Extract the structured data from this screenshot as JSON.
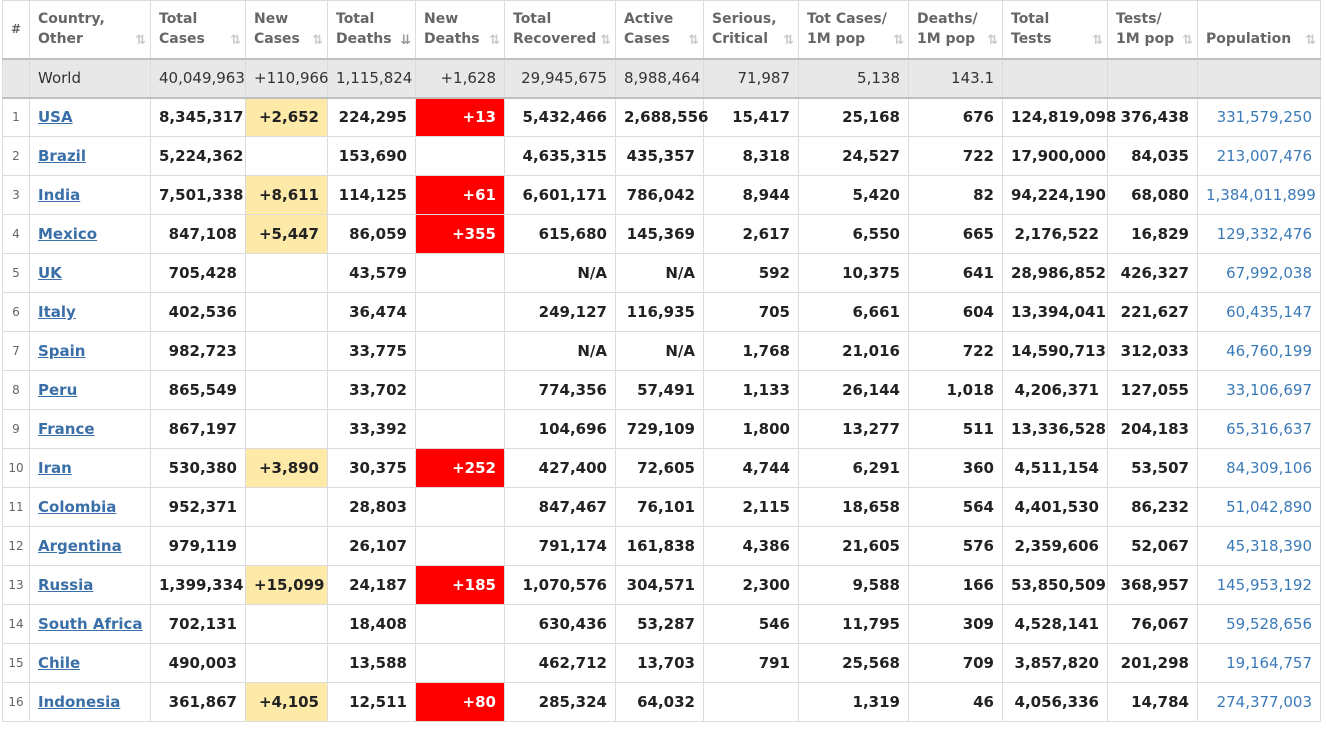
{
  "headers": [
    {
      "l1": "#",
      "l2": ""
    },
    {
      "l1": "Country,",
      "l2": "Other"
    },
    {
      "l1": "Total",
      "l2": "Cases"
    },
    {
      "l1": "New",
      "l2": "Cases"
    },
    {
      "l1": "Total",
      "l2": "Deaths"
    },
    {
      "l1": "New",
      "l2": "Deaths"
    },
    {
      "l1": "Total",
      "l2": "Recovered"
    },
    {
      "l1": "Active",
      "l2": "Cases"
    },
    {
      "l1": "Serious,",
      "l2": "Critical"
    },
    {
      "l1": "Tot Cases/",
      "l2": "1M pop"
    },
    {
      "l1": "Deaths/",
      "l2": "1M pop"
    },
    {
      "l1": "Total",
      "l2": "Tests"
    },
    {
      "l1": "Tests/",
      "l2": "1M pop"
    },
    {
      "l1": "Population",
      "l2": ""
    }
  ],
  "sort_icon": "⇅",
  "sort_active_icon": "⇊",
  "world": {
    "country": "World",
    "total_cases": "40,049,963",
    "new_cases": "+110,966",
    "total_deaths": "1,115,824",
    "new_deaths": "+1,628",
    "total_recovered": "29,945,675",
    "active_cases": "8,988,464",
    "serious": "71,987",
    "cases_per_m": "5,138",
    "deaths_per_m": "143.1",
    "total_tests": "",
    "tests_per_m": "",
    "population": ""
  },
  "rows": [
    {
      "num": "1",
      "country": "USA",
      "total_cases": "8,345,317",
      "new_cases": "+2,652",
      "total_deaths": "224,295",
      "new_deaths": "+13",
      "total_recovered": "5,432,466",
      "active_cases": "2,688,556",
      "serious": "15,417",
      "cases_per_m": "25,168",
      "deaths_per_m": "676",
      "total_tests": "124,819,098",
      "tests_per_m": "376,438",
      "population": "331,579,250"
    },
    {
      "num": "2",
      "country": "Brazil",
      "total_cases": "5,224,362",
      "new_cases": "",
      "total_deaths": "153,690",
      "new_deaths": "",
      "total_recovered": "4,635,315",
      "active_cases": "435,357",
      "serious": "8,318",
      "cases_per_m": "24,527",
      "deaths_per_m": "722",
      "total_tests": "17,900,000",
      "tests_per_m": "84,035",
      "population": "213,007,476"
    },
    {
      "num": "3",
      "country": "India",
      "total_cases": "7,501,338",
      "new_cases": "+8,611",
      "total_deaths": "114,125",
      "new_deaths": "+61",
      "total_recovered": "6,601,171",
      "active_cases": "786,042",
      "serious": "8,944",
      "cases_per_m": "5,420",
      "deaths_per_m": "82",
      "total_tests": "94,224,190",
      "tests_per_m": "68,080",
      "population": "1,384,011,899"
    },
    {
      "num": "4",
      "country": "Mexico",
      "total_cases": "847,108",
      "new_cases": "+5,447",
      "total_deaths": "86,059",
      "new_deaths": "+355",
      "total_recovered": "615,680",
      "active_cases": "145,369",
      "serious": "2,617",
      "cases_per_m": "6,550",
      "deaths_per_m": "665",
      "total_tests": "2,176,522",
      "tests_per_m": "16,829",
      "population": "129,332,476"
    },
    {
      "num": "5",
      "country": "UK",
      "total_cases": "705,428",
      "new_cases": "",
      "total_deaths": "43,579",
      "new_deaths": "",
      "total_recovered": "N/A",
      "active_cases": "N/A",
      "serious": "592",
      "cases_per_m": "10,375",
      "deaths_per_m": "641",
      "total_tests": "28,986,852",
      "tests_per_m": "426,327",
      "population": "67,992,038"
    },
    {
      "num": "6",
      "country": "Italy",
      "total_cases": "402,536",
      "new_cases": "",
      "total_deaths": "36,474",
      "new_deaths": "",
      "total_recovered": "249,127",
      "active_cases": "116,935",
      "serious": "705",
      "cases_per_m": "6,661",
      "deaths_per_m": "604",
      "total_tests": "13,394,041",
      "tests_per_m": "221,627",
      "population": "60,435,147"
    },
    {
      "num": "7",
      "country": "Spain",
      "total_cases": "982,723",
      "new_cases": "",
      "total_deaths": "33,775",
      "new_deaths": "",
      "total_recovered": "N/A",
      "active_cases": "N/A",
      "serious": "1,768",
      "cases_per_m": "21,016",
      "deaths_per_m": "722",
      "total_tests": "14,590,713",
      "tests_per_m": "312,033",
      "population": "46,760,199"
    },
    {
      "num": "8",
      "country": "Peru",
      "total_cases": "865,549",
      "new_cases": "",
      "total_deaths": "33,702",
      "new_deaths": "",
      "total_recovered": "774,356",
      "active_cases": "57,491",
      "serious": "1,133",
      "cases_per_m": "26,144",
      "deaths_per_m": "1,018",
      "total_tests": "4,206,371",
      "tests_per_m": "127,055",
      "population": "33,106,697"
    },
    {
      "num": "9",
      "country": "France",
      "total_cases": "867,197",
      "new_cases": "",
      "total_deaths": "33,392",
      "new_deaths": "",
      "total_recovered": "104,696",
      "active_cases": "729,109",
      "serious": "1,800",
      "cases_per_m": "13,277",
      "deaths_per_m": "511",
      "total_tests": "13,336,528",
      "tests_per_m": "204,183",
      "population": "65,316,637"
    },
    {
      "num": "10",
      "country": "Iran",
      "total_cases": "530,380",
      "new_cases": "+3,890",
      "total_deaths": "30,375",
      "new_deaths": "+252",
      "total_recovered": "427,400",
      "active_cases": "72,605",
      "serious": "4,744",
      "cases_per_m": "6,291",
      "deaths_per_m": "360",
      "total_tests": "4,511,154",
      "tests_per_m": "53,507",
      "population": "84,309,106"
    },
    {
      "num": "11",
      "country": "Colombia",
      "total_cases": "952,371",
      "new_cases": "",
      "total_deaths": "28,803",
      "new_deaths": "",
      "total_recovered": "847,467",
      "active_cases": "76,101",
      "serious": "2,115",
      "cases_per_m": "18,658",
      "deaths_per_m": "564",
      "total_tests": "4,401,530",
      "tests_per_m": "86,232",
      "population": "51,042,890"
    },
    {
      "num": "12",
      "country": "Argentina",
      "total_cases": "979,119",
      "new_cases": "",
      "total_deaths": "26,107",
      "new_deaths": "",
      "total_recovered": "791,174",
      "active_cases": "161,838",
      "serious": "4,386",
      "cases_per_m": "21,605",
      "deaths_per_m": "576",
      "total_tests": "2,359,606",
      "tests_per_m": "52,067",
      "population": "45,318,390"
    },
    {
      "num": "13",
      "country": "Russia",
      "total_cases": "1,399,334",
      "new_cases": "+15,099",
      "total_deaths": "24,187",
      "new_deaths": "+185",
      "total_recovered": "1,070,576",
      "active_cases": "304,571",
      "serious": "2,300",
      "cases_per_m": "9,588",
      "deaths_per_m": "166",
      "total_tests": "53,850,509",
      "tests_per_m": "368,957",
      "population": "145,953,192"
    },
    {
      "num": "14",
      "country": "South Africa",
      "total_cases": "702,131",
      "new_cases": "",
      "total_deaths": "18,408",
      "new_deaths": "",
      "total_recovered": "630,436",
      "active_cases": "53,287",
      "serious": "546",
      "cases_per_m": "11,795",
      "deaths_per_m": "309",
      "total_tests": "4,528,141",
      "tests_per_m": "76,067",
      "population": "59,528,656"
    },
    {
      "num": "15",
      "country": "Chile",
      "total_cases": "490,003",
      "new_cases": "",
      "total_deaths": "13,588",
      "new_deaths": "",
      "total_recovered": "462,712",
      "active_cases": "13,703",
      "serious": "791",
      "cases_per_m": "25,568",
      "deaths_per_m": "709",
      "total_tests": "3,857,820",
      "tests_per_m": "201,298",
      "population": "19,164,757"
    },
    {
      "num": "16",
      "country": "Indonesia",
      "total_cases": "361,867",
      "new_cases": "+4,105",
      "total_deaths": "12,511",
      "new_deaths": "+80",
      "total_recovered": "285,324",
      "active_cases": "64,032",
      "serious": "",
      "cases_per_m": "1,319",
      "deaths_per_m": "46",
      "total_tests": "4,056,336",
      "tests_per_m": "14,784",
      "population": "274,377,003"
    }
  ],
  "colors": {
    "new_cases_highlight": "#fde9a8",
    "new_deaths_highlight": "#ff0000",
    "link": "#3a6fa8",
    "world_row": "#e8e8e8"
  }
}
